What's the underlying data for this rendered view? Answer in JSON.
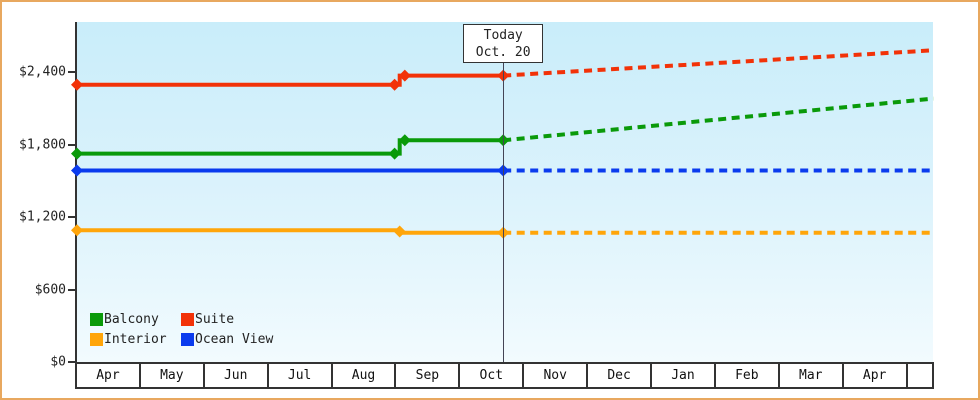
{
  "frame": {
    "border_color": "#e8a85f",
    "plot_bg_top": "#c9edfa",
    "plot_bg_bottom": "#f2fbfe",
    "axis_color": "#333333"
  },
  "legend": {
    "items": [
      {
        "label": "Balcony",
        "color": "#0a9a0a"
      },
      {
        "label": "Suite",
        "color": "#f23208"
      },
      {
        "label": "Interior",
        "color": "#ffa50a"
      },
      {
        "label": "Ocean View",
        "color": "#0a3bee"
      }
    ]
  },
  "chart_data": {
    "type": "line",
    "title": "",
    "xlabel": "",
    "ylabel": "",
    "grid": false,
    "legend_position": "bottom-left-inside",
    "x_categories": [
      "Apr",
      "May",
      "Jun",
      "Jul",
      "Aug",
      "Sep",
      "Oct",
      "Nov",
      "Dec",
      "Jan",
      "Feb",
      "Mar",
      "Apr"
    ],
    "x_extent_months": 13.4,
    "y_ticks": [
      {
        "label": "$0",
        "value": 0
      },
      {
        "label": "$600",
        "value": 600
      },
      {
        "label": "$1,200",
        "value": 1200
      },
      {
        "label": "$1,800",
        "value": 1800
      },
      {
        "label": "$2,400",
        "value": 2400
      }
    ],
    "ylim": [
      0,
      2814
    ],
    "today": {
      "line1": "Today",
      "line2": "Oct. 20",
      "month_position": 6.67
    },
    "series": [
      {
        "name": "Balcony",
        "color": "#0a9a0a",
        "history": [
          [
            0,
            1725
          ],
          [
            5.05,
            1725
          ],
          [
            5.05,
            1835
          ],
          [
            6.67,
            1835
          ]
        ],
        "forecast": [
          [
            6.67,
            1835
          ],
          [
            13.4,
            2180
          ]
        ],
        "markers": [
          [
            0,
            1725
          ],
          [
            4.97,
            1725
          ],
          [
            5.13,
            1835
          ],
          [
            6.67,
            1835
          ]
        ]
      },
      {
        "name": "Suite",
        "color": "#f23208",
        "history": [
          [
            0,
            2295
          ],
          [
            5.05,
            2295
          ],
          [
            5.05,
            2370
          ],
          [
            6.67,
            2370
          ]
        ],
        "forecast": [
          [
            6.67,
            2370
          ],
          [
            13.4,
            2580
          ]
        ],
        "markers": [
          [
            0,
            2295
          ],
          [
            4.97,
            2295
          ],
          [
            5.13,
            2370
          ],
          [
            6.67,
            2370
          ]
        ]
      },
      {
        "name": "Interior",
        "color": "#ffa50a",
        "history": [
          [
            0,
            1090
          ],
          [
            5.05,
            1090
          ],
          [
            5.05,
            1070
          ],
          [
            6.67,
            1070
          ]
        ],
        "forecast": [
          [
            6.67,
            1070
          ],
          [
            13.4,
            1070
          ]
        ],
        "markers": [
          [
            0,
            1090
          ],
          [
            5.05,
            1080
          ],
          [
            6.67,
            1070
          ]
        ]
      },
      {
        "name": "Ocean View",
        "color": "#0a3bee",
        "history": [
          [
            0,
            1585
          ],
          [
            6.67,
            1585
          ]
        ],
        "forecast": [
          [
            6.67,
            1585
          ],
          [
            13.4,
            1585
          ]
        ],
        "markers": [
          [
            0,
            1585
          ],
          [
            6.67,
            1585
          ]
        ]
      }
    ]
  }
}
